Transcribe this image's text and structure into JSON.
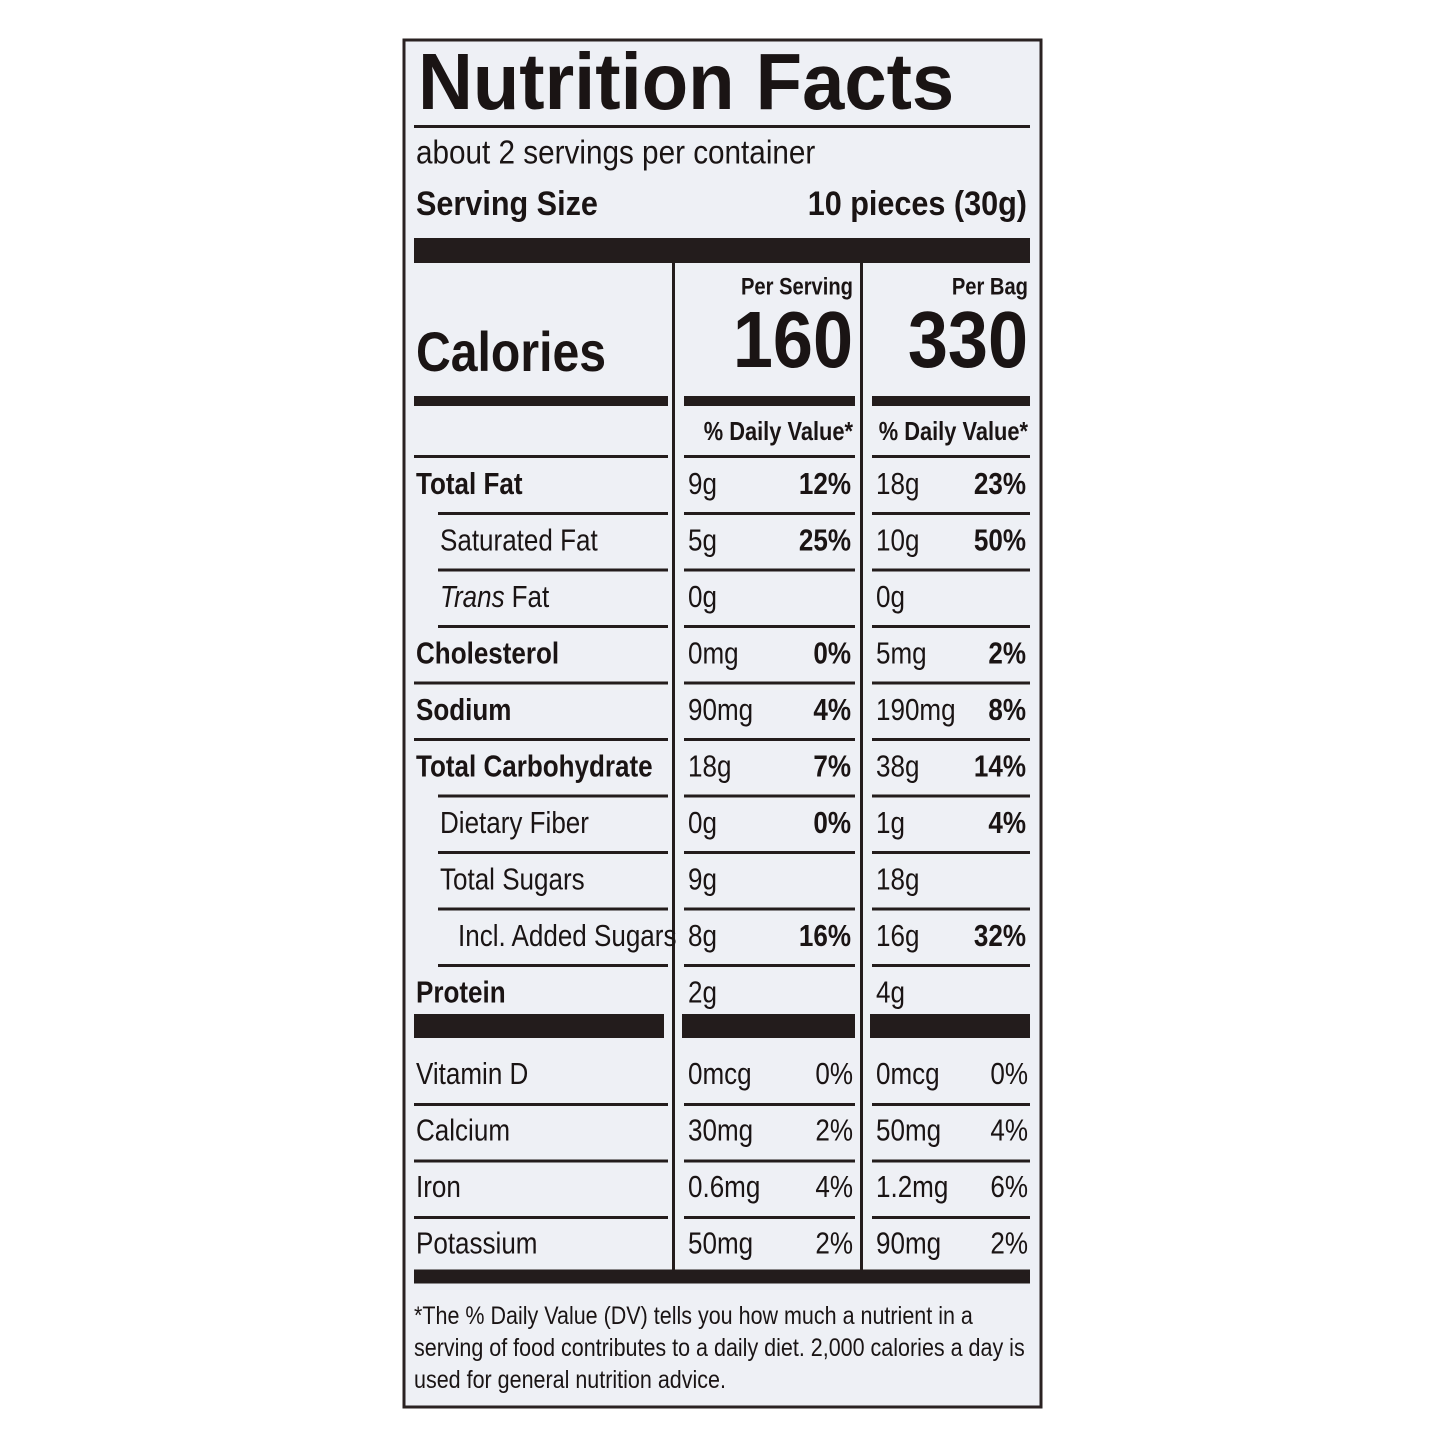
{
  "title": "Nutrition Facts",
  "servings": "about 2 servings per container",
  "serving_size": {
    "label": "Serving Size",
    "value": "10 pieces (30g)"
  },
  "calories_label": "Calories",
  "columns": [
    {
      "heading": "Per Serving",
      "calories": "160",
      "dv_header": "% Daily Value*"
    },
    {
      "heading": "Per Bag",
      "calories": "330",
      "dv_header": "% Daily Value*"
    }
  ],
  "nutrients": [
    {
      "label": "Total Fat",
      "bold": true,
      "indent": 0,
      "values": [
        [
          "9g",
          "12%"
        ],
        [
          "18g",
          "23%"
        ]
      ]
    },
    {
      "label": "Saturated Fat",
      "bold": false,
      "indent": 1,
      "values": [
        [
          "5g",
          "25%"
        ],
        [
          "10g",
          "50%"
        ]
      ]
    },
    {
      "italic_prefix": "Trans",
      "label": "Fat",
      "bold": false,
      "indent": 1,
      "values": [
        [
          "0g",
          null
        ],
        [
          "0g",
          null
        ]
      ]
    },
    {
      "label": "Cholesterol",
      "bold": true,
      "indent": 0,
      "values": [
        [
          "0mg",
          "0%"
        ],
        [
          "5mg",
          "2%"
        ]
      ]
    },
    {
      "label": "Sodium",
      "bold": true,
      "indent": 0,
      "values": [
        [
          "90mg",
          "4%"
        ],
        [
          "190mg",
          "8%"
        ]
      ]
    },
    {
      "label": "Total Carbohydrate",
      "bold": true,
      "indent": 0,
      "values": [
        [
          "18g",
          "7%"
        ],
        [
          "38g",
          "14%"
        ]
      ]
    },
    {
      "label": "Dietary Fiber",
      "bold": false,
      "indent": 1,
      "values": [
        [
          "0g",
          "0%"
        ],
        [
          "1g",
          "4%"
        ]
      ]
    },
    {
      "label": "Total Sugars",
      "bold": false,
      "indent": 1,
      "values": [
        [
          "9g",
          null
        ],
        [
          "18g",
          null
        ]
      ]
    },
    {
      "label": "Incl. Added Sugars",
      "bold": false,
      "indent": 2,
      "values": [
        [
          "8g",
          "16%"
        ],
        [
          "16g",
          "32%"
        ]
      ]
    },
    {
      "label": "Protein",
      "bold": true,
      "indent": 0,
      "values": [
        [
          "2g",
          null
        ],
        [
          "4g",
          null
        ]
      ]
    }
  ],
  "vitamins": [
    {
      "label": "Vitamin D",
      "values": [
        [
          "0mcg",
          "0%"
        ],
        [
          "0mcg",
          "0%"
        ]
      ]
    },
    {
      "label": "Calcium",
      "values": [
        [
          "30mg",
          "2%"
        ],
        [
          "50mg",
          "4%"
        ]
      ]
    },
    {
      "label": "Iron",
      "values": [
        [
          "0.6mg",
          "4%"
        ],
        [
          "1.2mg",
          "6%"
        ]
      ]
    },
    {
      "label": "Potassium",
      "values": [
        [
          "50mg",
          "2%"
        ],
        [
          "90mg",
          "2%"
        ]
      ]
    }
  ],
  "footnote": "*The % Daily Value (DV) tells you how much a nutrient in a serving of food contributes to a daily diet. 2,000 calories a day is used for general nutrition advice."
}
